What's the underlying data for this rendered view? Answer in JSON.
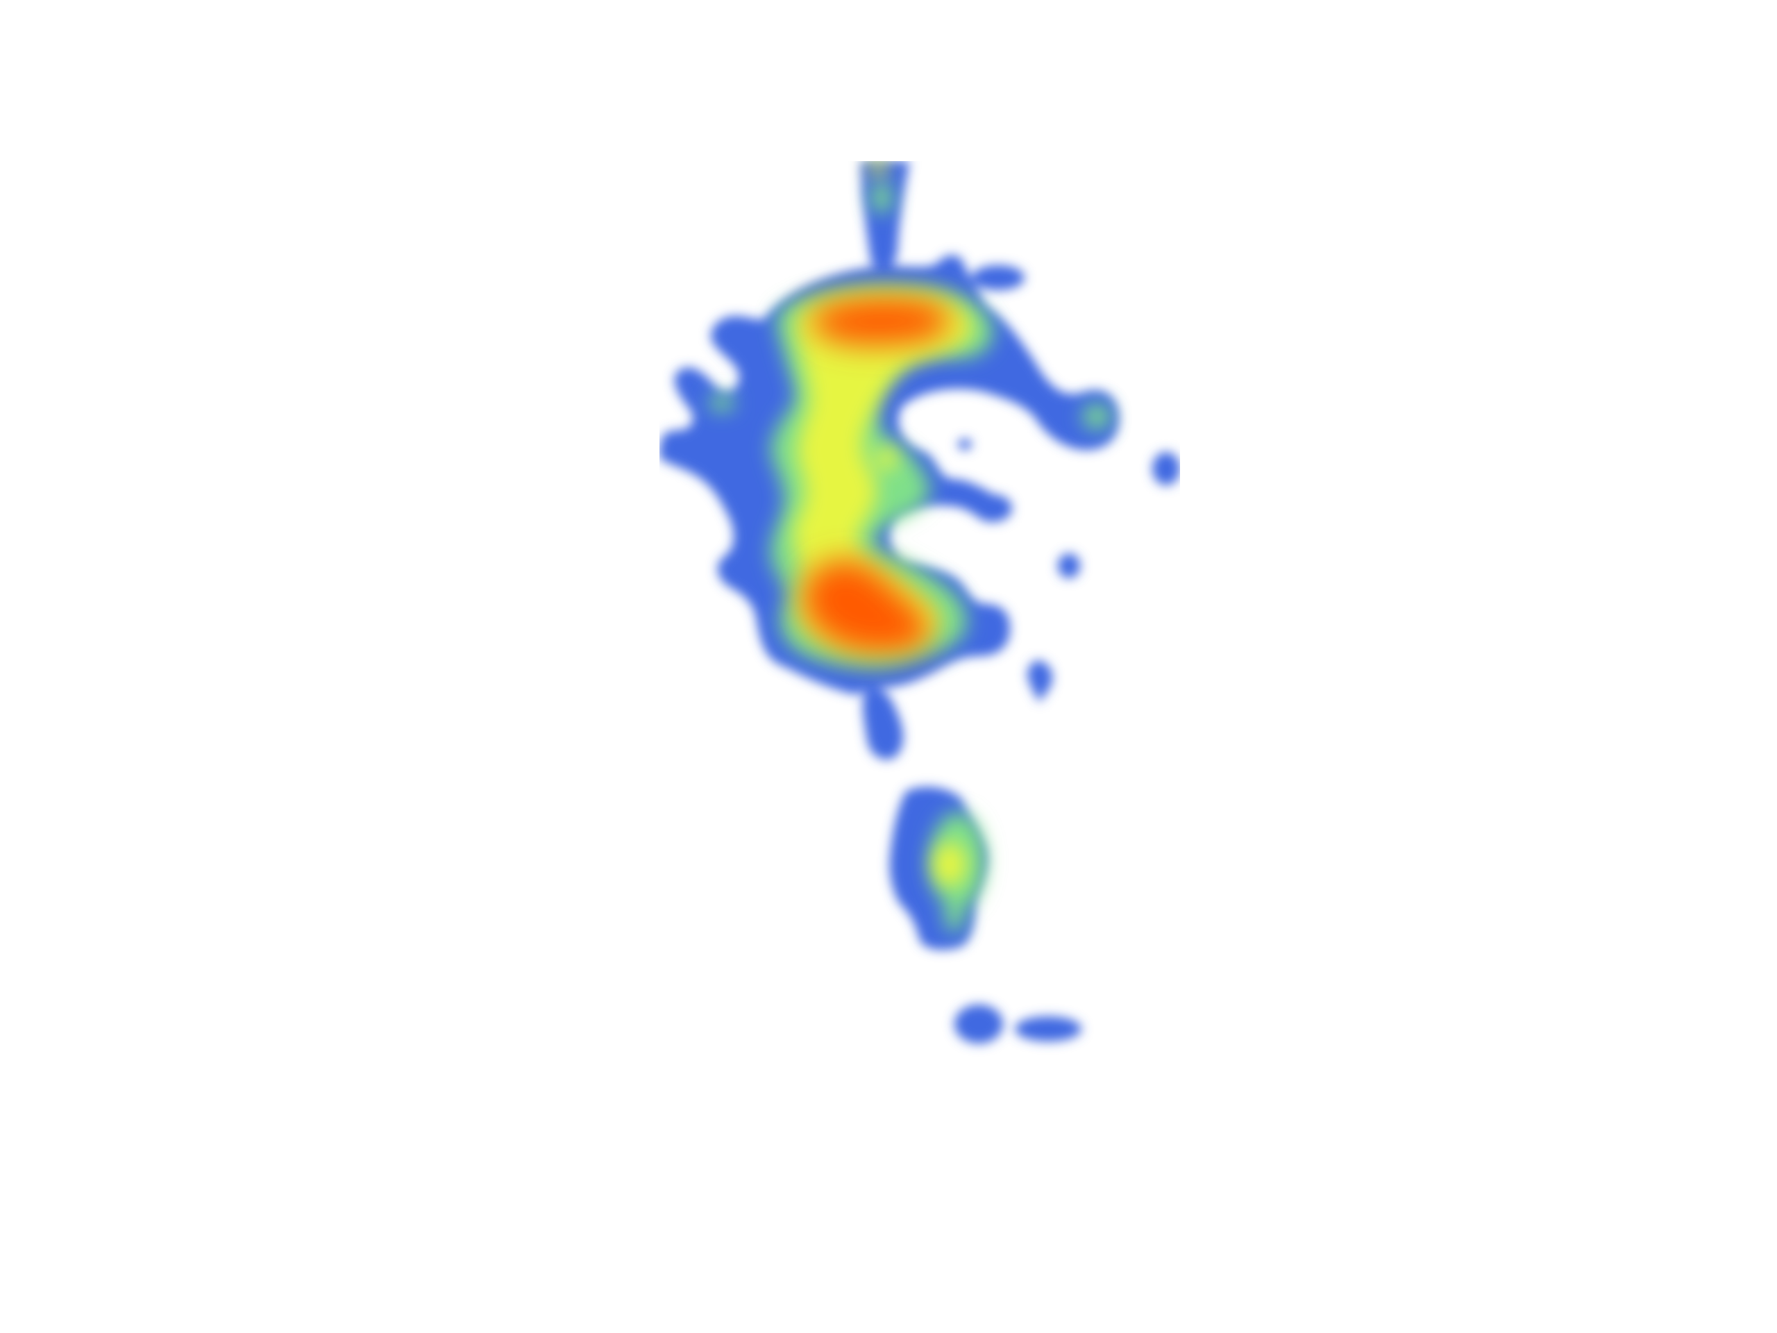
{
  "colors": {
    "background": "#ffffff",
    "low": "#4169e1",
    "low_mid": "#7fe08a",
    "mid": "#e6f542",
    "high_mid": "#ffd800",
    "high": "#ff5a00"
  },
  "heatmap": {
    "color_scale": [
      "#4169e1",
      "#7fe08a",
      "#e6f542",
      "#ffd800",
      "#ff5a00"
    ]
  }
}
